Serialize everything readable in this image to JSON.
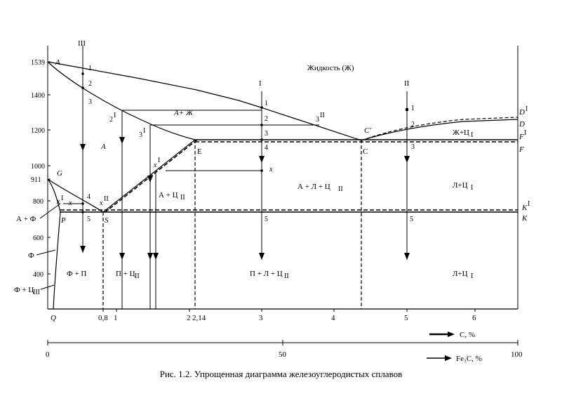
{
  "caption": "Рис. 1.2. Упрощенная диаграмма железоуглеродистых сплавов",
  "axis": {
    "y_ticks": [
      "1539",
      "1400",
      "1200",
      "1000",
      "911",
      "800",
      "600",
      "400"
    ],
    "x_ticks": [
      "Q",
      "0,8",
      "1",
      "2",
      "2,14",
      "3",
      "4",
      "5",
      "6"
    ],
    "c_label": "С, %",
    "fe3c_label": "Fe₃C, %",
    "fe3c_ticks": [
      "0",
      "50",
      "100"
    ]
  },
  "columns": {
    "col_III": "III",
    "col_I": "I",
    "col_II": "II"
  },
  "points": {
    "A": "A",
    "G": "G",
    "P": "P",
    "S": "S",
    "E": "E",
    "C": "C",
    "Cprime": "C′",
    "D": "D",
    "DI": "D",
    "DI_sup": "I",
    "F": "F",
    "FI": "F",
    "FI_sup": "I",
    "K": "K",
    "KI": "K",
    "KI_sup": "I"
  },
  "regions": {
    "liquid": "Жидкость (Ж)",
    "A_plus_Zh": "А+ Ж",
    "A": "А",
    "A_plus_Ts2": "А + Ц",
    "A_plus_Ts2_sub": "II",
    "A_plus_L_plus_Ts2": "А + Л + Ц",
    "A_plus_L_plus_Ts2_sub": "II",
    "Zh_plus_Ts1": "Ж+Ц",
    "Zh_plus_Ts1_sub": "I",
    "L_plus_Ts1_upper": "Л+Ц",
    "L_plus_Ts1_upper_sub": "I",
    "A_plus_F": "А + Ф",
    "F": "Ф",
    "F_plus_Ts3": "Ф + Ц",
    "F_plus_Ts3_sub": "III",
    "F_plus_P": "Ф + П",
    "P_plus_Ts2": "П + Ц",
    "P_plus_Ts2_sub": "II",
    "P_plus_L_plus_Ts2": "П + Л + Ц",
    "P_plus_L_plus_Ts2_sub": "II",
    "L_plus_Ts1_lower": "Л+Ц",
    "L_plus_Ts1_lower_sub": "I"
  },
  "markers": {
    "n1": "1",
    "n2": "2",
    "n3": "3",
    "n4": "4",
    "n5": "5",
    "x": "x",
    "xI": "x",
    "xII": "x",
    "sup_I": "I",
    "sup_II": "II"
  },
  "colors": {
    "ink": "#000000",
    "background": "#ffffff"
  }
}
